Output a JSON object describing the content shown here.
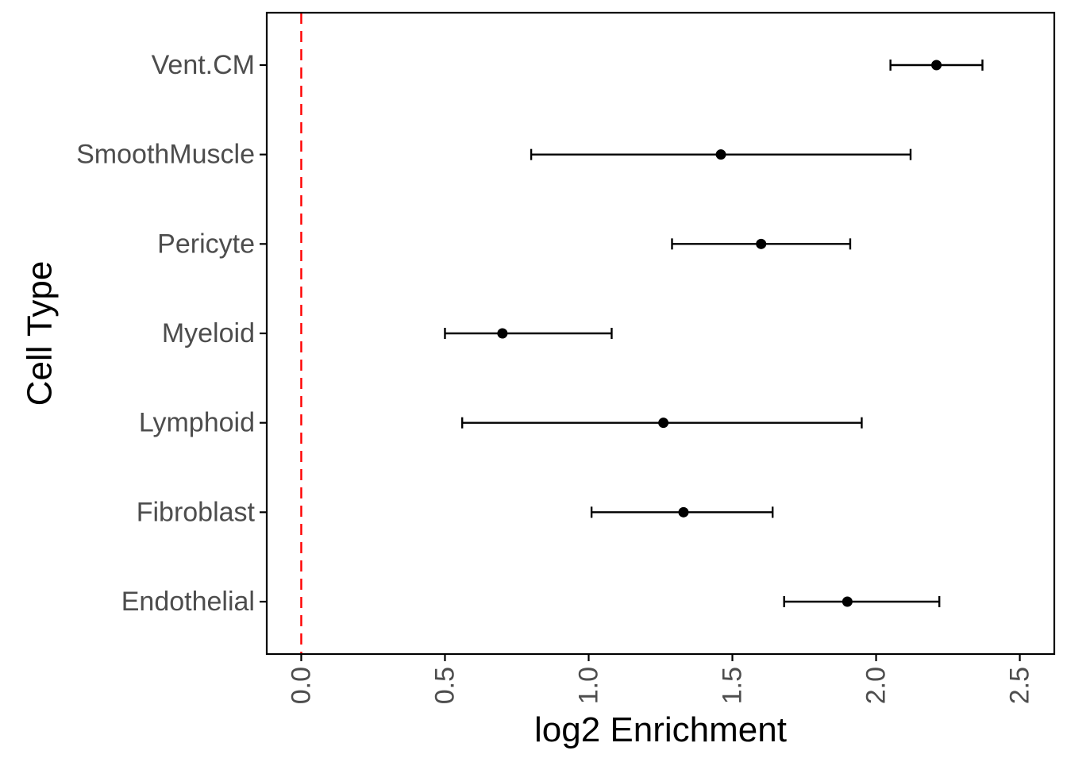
{
  "chart_data": {
    "type": "scatter",
    "subtype": "point-range",
    "title": "",
    "xlabel": "log2 Enrichment",
    "ylabel": "Cell Type",
    "xlim": [
      -0.12,
      2.62
    ],
    "x_ticks": [
      "0.0",
      "0.5",
      "1.0",
      "1.5",
      "2.0",
      "2.5"
    ],
    "x_tick_values": [
      0.0,
      0.5,
      1.0,
      1.5,
      2.0,
      2.5
    ],
    "x_tick_label_rotation": -90,
    "categories": [
      "Vent.CM",
      "SmoothMuscle",
      "Pericyte",
      "Myeloid",
      "Lymphoid",
      "Fibroblast",
      "Endothelial"
    ],
    "values": [
      2.21,
      1.46,
      1.6,
      0.7,
      1.26,
      1.33,
      1.9
    ],
    "lower": [
      2.05,
      0.8,
      1.29,
      0.5,
      0.56,
      1.01,
      1.68
    ],
    "upper": [
      2.37,
      2.12,
      1.91,
      1.08,
      1.95,
      1.64,
      2.22
    ],
    "reference_line": {
      "x": 0,
      "style": "dashed",
      "color": "#ff0000"
    },
    "grid": false,
    "legend": "none",
    "colors": {
      "point": "#000000",
      "errorbar": "#000000",
      "axis": "#000000",
      "tick_label": "#4d4d4d",
      "reference_line": "#ff0000"
    }
  }
}
